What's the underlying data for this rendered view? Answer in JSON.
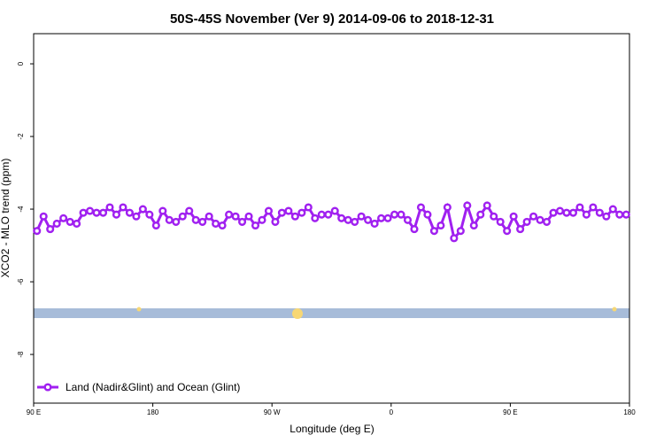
{
  "chart_data": {
    "type": "line",
    "title": "50S-45S November (Ver 9)   2014-09-06 to 2018-12-31",
    "x_label": "Longitude (deg E)",
    "y_label": "XCO2 - MLO trend (ppm)",
    "xlim": [
      90,
      540
    ],
    "xticks": [
      {
        "value": 90,
        "label": "90 E"
      },
      180,
      {
        "value": 270,
        "label": "90 W"
      },
      {
        "value": 360,
        "label": "0"
      },
      {
        "value": 450,
        "label": "90 E"
      },
      {
        "value": 540,
        "label": "180"
      }
    ],
    "ylim": [
      -9.34,
      0.83
    ],
    "yticks": [
      0,
      -2,
      -4,
      -6,
      -8
    ],
    "legend": "bottom-left",
    "x": [
      92.5,
      97.5,
      102.5,
      107.5,
      112.5,
      117.5,
      122.5,
      127.5,
      132.5,
      137.5,
      142.5,
      147.5,
      152.5,
      157.5,
      162.5,
      167.5,
      172.5,
      177.5,
      182.5,
      187.5,
      192.5,
      197.5,
      202.5,
      207.5,
      212.5,
      217.5,
      222.5,
      227.5,
      232.5,
      237.5,
      242.5,
      247.5,
      252.5,
      257.5,
      262.5,
      267.5,
      272.5,
      277.5,
      282.5,
      287.5,
      292.5,
      297.5,
      302.5,
      307.5,
      312.5,
      317.5,
      322.5,
      327.5,
      332.5,
      337.5,
      342.5,
      347.5,
      352.5,
      357.5,
      362.5,
      367.5,
      372.5,
      377.5,
      382.5,
      387.5,
      392.5,
      397.5,
      402.5,
      407.5,
      412.5,
      417.5,
      422.5,
      427.5,
      432.5,
      437.5,
      442.5,
      447.5,
      452.5,
      457.5,
      462.5,
      467.5,
      472.5,
      477.5,
      482.5,
      487.5,
      492.5,
      497.5,
      502.5,
      507.5,
      512.5,
      517.5,
      522.5,
      527.5,
      532.5,
      537.5
    ],
    "series": [
      {
        "name": "Land (Nadir&Glint) and Ocean (Glint)",
        "color": "#a020f0",
        "values": [
          -4.6,
          -4.2,
          -4.55,
          -4.4,
          -4.25,
          -4.35,
          -4.4,
          -4.1,
          -4.05,
          -4.1,
          -4.1,
          -3.95,
          -4.15,
          -3.95,
          -4.1,
          -4.2,
          -4.0,
          -4.15,
          -4.45,
          -4.05,
          -4.3,
          -4.35,
          -4.2,
          -4.05,
          -4.3,
          -4.35,
          -4.2,
          -4.4,
          -4.45,
          -4.15,
          -4.2,
          -4.35,
          -4.2,
          -4.45,
          -4.3,
          -4.05,
          -4.35,
          -4.1,
          -4.05,
          -4.2,
          -4.1,
          -3.95,
          -4.25,
          -4.15,
          -4.15,
          -4.05,
          -4.25,
          -4.3,
          -4.35,
          -4.2,
          -4.3,
          -4.4,
          -4.25,
          -4.25,
          -4.15,
          -4.15,
          -4.3,
          -4.55,
          -3.95,
          -4.15,
          -4.6,
          -4.45,
          -3.95,
          -4.8,
          -4.6,
          -3.9,
          -4.45,
          -4.15,
          -3.9,
          -4.2,
          -4.35,
          -4.6,
          -4.2,
          -4.55,
          -4.35,
          -4.2,
          -4.3,
          -4.35,
          -4.1,
          -4.05,
          -4.1,
          -4.1,
          -3.95,
          -4.15,
          -3.95,
          -4.1,
          -4.2,
          -4.0,
          -4.15,
          -4.15
        ]
      }
    ]
  }
}
